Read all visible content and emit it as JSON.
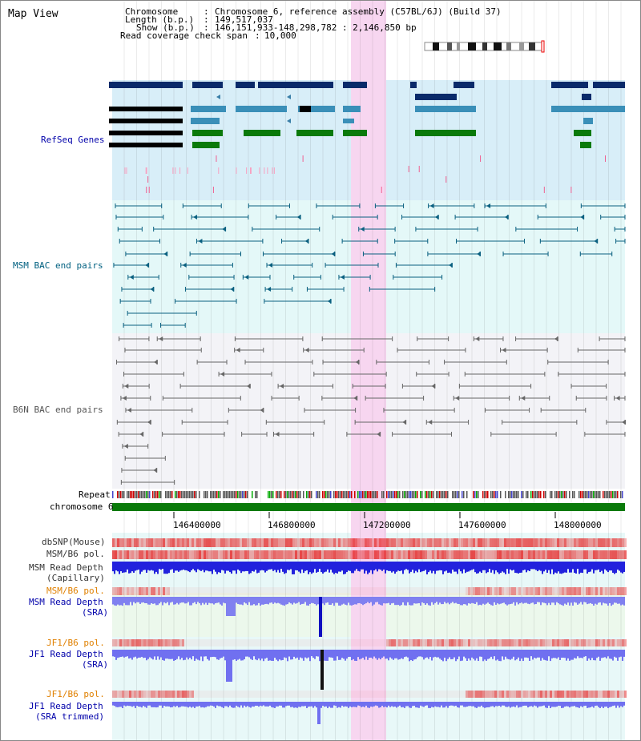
{
  "view_title": "Map View",
  "header": {
    "chromosome_key": "Chromosome",
    "chromosome_val": "Chromosome 6, reference assembly (C57BL/6J) (Build 37)",
    "length_key": "Length (b.p.)",
    "length_val": "149,517,037",
    "show_key": "Show (b.p.)",
    "show_val": "146,151,933-148,298,782 : 2,146,850 bp",
    "span_key": "Read coverage check span",
    "span_val": "10,000"
  },
  "tracks": {
    "refseq": "RefSeq Genes",
    "msm_bac": "MSM BAC end pairs",
    "b6n_bac": "B6N BAC end pairs",
    "repeat": "Repeat",
    "chromosome": "chromosome 6",
    "dbsnp": "dbSNP(Mouse)",
    "msm_b6_pol": "MSM/B6 pol.",
    "msm_depth_cap_1": "MSM Read Depth",
    "msm_depth_cap_2": "(Capillary)",
    "msm_b6_pol_2": "MSM/B6 pol.",
    "msm_depth_sra_1": "MSM Read Depth",
    "msm_depth_sra_2": "(SRA)",
    "jf1_b6_pol": "JF1/B6 pol.",
    "jf1_depth_sra_1": "JF1 Read Depth",
    "jf1_depth_sra_2": "(SRA)",
    "jf1_b6_pol_2": "JF1/B6 pol.",
    "jf1_depth_trim_1": "JF1 Read Depth",
    "jf1_depth_trim_2": "(SRA trimmed)"
  },
  "axis_ticks": [
    "146400000",
    "146800000",
    "147200000",
    "147600000",
    "148000000"
  ],
  "colors": {
    "refseq_label": "#0000aa",
    "msm_label": "#006080",
    "b6n_label": "#555555",
    "orange_label": "#e08000",
    "blue_label": "#0000aa",
    "highlight": "#f7d6f0",
    "refseq_bg": "#d8eef8",
    "msm_bg": "#e4f8f8",
    "b6n_bg": "#f3f3f7",
    "gene_dark": "#0a2a6a",
    "gene_mid": "#3a8fb8",
    "gene_green": "#0a7a0a",
    "chrom_green": "#0a7a0a"
  }
}
